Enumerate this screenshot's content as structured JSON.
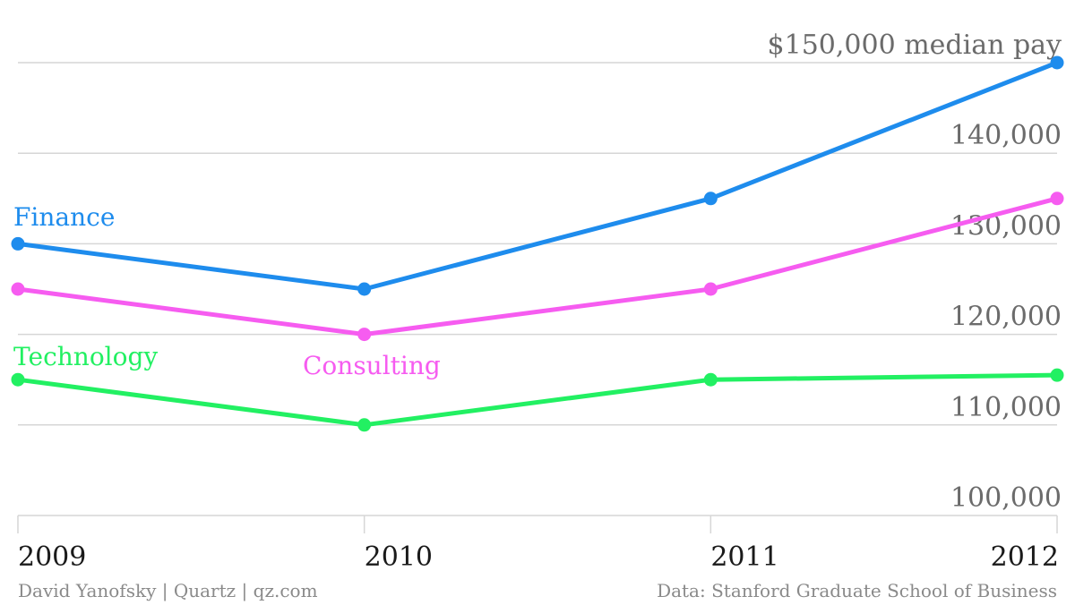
{
  "chart_data": {
    "type": "line",
    "x": [
      "2009",
      "2010",
      "2011",
      "2012"
    ],
    "y_ticks": [
      {
        "value": 100000,
        "label": "100,000"
      },
      {
        "value": 110000,
        "label": "110,000"
      },
      {
        "value": 120000,
        "label": "120,000"
      },
      {
        "value": 130000,
        "label": "130,000"
      },
      {
        "value": 140000,
        "label": "140,000"
      },
      {
        "value": 150000,
        "label": "$150,000 median pay"
      }
    ],
    "ylim": [
      100000,
      150000
    ],
    "grid": true,
    "series": [
      {
        "name": "Finance",
        "color": "#1e8ced",
        "values": [
          130000,
          125000,
          135000,
          150000
        ]
      },
      {
        "name": "Consulting",
        "color": "#f65cf0",
        "values": [
          125000,
          120000,
          125000,
          135000
        ]
      },
      {
        "name": "Technology",
        "color": "#22f062",
        "values": [
          115000,
          110000,
          115000,
          115500
        ]
      }
    ]
  },
  "footer": {
    "credit": "David Yanofsky | Quartz | qz.com",
    "source": "Data: Stanford Graduate School of Business"
  }
}
